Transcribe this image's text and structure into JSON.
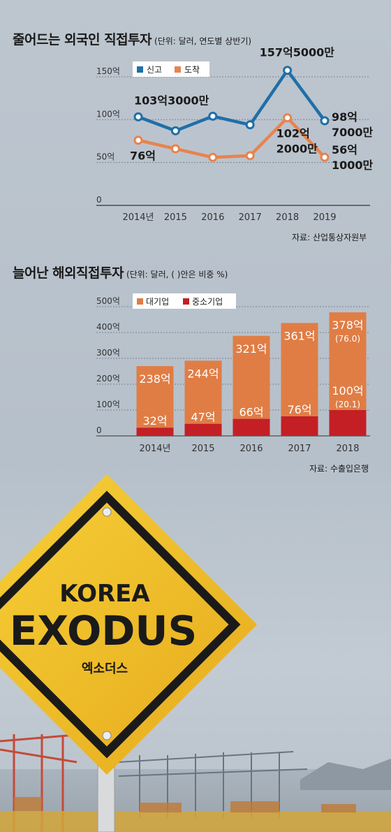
{
  "chart_data": [
    {
      "type": "line",
      "title": "줄어드는 외국인 직접투자",
      "subtitle": "(단위: 달러, 연도별 상반기)",
      "categories": [
        "2014년",
        "2015",
        "2016",
        "2017",
        "2018",
        "2019"
      ],
      "ylim": [
        0,
        150
      ],
      "yticks": [
        "0",
        "50억",
        "100억",
        "150억"
      ],
      "grid": true,
      "legend": "top-left",
      "series": [
        {
          "name": "신고",
          "color": "#1f6fa8",
          "values": [
            103.3,
            87,
            104,
            94,
            157.5,
            98.7
          ]
        },
        {
          "name": "도착",
          "color": "#e8834d",
          "values": [
            76,
            66,
            56,
            58,
            102.2,
            56.1
          ]
        }
      ],
      "annotations": [
        {
          "lines": [
            "103억3000만"
          ],
          "series": 0,
          "index": 0
        },
        {
          "lines": [
            "157억5000만"
          ],
          "series": 0,
          "index": 4
        },
        {
          "lines": [
            "98억",
            "7000만"
          ],
          "series": 0,
          "index": 5
        },
        {
          "lines": [
            "76억"
          ],
          "series": 1,
          "index": 0
        },
        {
          "lines": [
            "102억",
            "2000만"
          ],
          "series": 1,
          "index": 4
        },
        {
          "lines": [
            "56억",
            "1000만"
          ],
          "series": 1,
          "index": 5
        }
      ],
      "source": "자료: 산업통상자원부"
    },
    {
      "type": "bar",
      "stacked": true,
      "title": "늘어난 해외직접투자",
      "subtitle": "(단위: 달러, ( )안은 비중 %)",
      "categories": [
        "2014년",
        "2015",
        "2016",
        "2017",
        "2018"
      ],
      "ylim": [
        0,
        500
      ],
      "yticks": [
        "0",
        "100억",
        "200억",
        "300억",
        "400억",
        "500억"
      ],
      "grid": true,
      "legend": "top-left",
      "series": [
        {
          "name": "중소기업",
          "color": "#c41f24",
          "values": [
            32,
            47,
            66,
            76,
            100
          ],
          "labels": [
            "32억",
            "47억",
            "66억",
            "76억",
            "100억"
          ]
        },
        {
          "name": "대기업",
          "color": "#e07d45",
          "values": [
            238,
            244,
            321,
            361,
            378
          ],
          "labels": [
            "238억",
            "244억",
            "321억",
            "361억",
            "378억"
          ]
        }
      ],
      "shares": {
        "대기업": "(76.0)",
        "중소기업": "(20.1)"
      },
      "source": "자료: 수출입은행"
    }
  ],
  "sign": {
    "line1": "KOREA",
    "line2": "EXODUS",
    "line3": "엑소더스"
  }
}
